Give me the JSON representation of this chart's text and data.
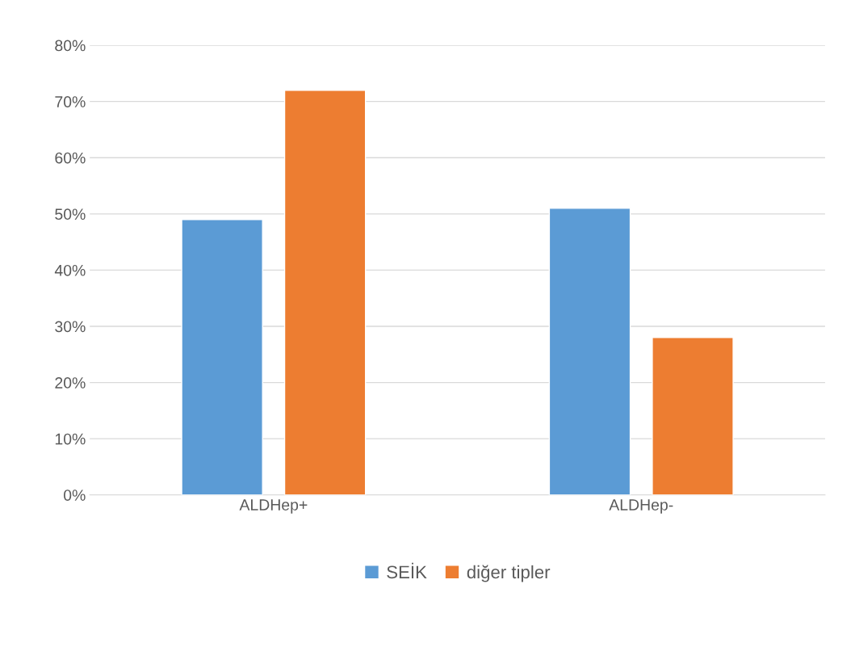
{
  "chart_data": {
    "type": "bar",
    "categories": [
      "ALDHep+",
      "ALDHep-"
    ],
    "series": [
      {
        "name": "SEİK",
        "color": "#5b9bd5",
        "values": [
          49,
          51
        ]
      },
      {
        "name": "diğer tipler",
        "color": "#ed7d31",
        "values": [
          72,
          28
        ]
      }
    ],
    "ylim": [
      0,
      80
    ],
    "yticks": [
      {
        "value": 0,
        "label": "0%"
      },
      {
        "value": 10,
        "label": "10%"
      },
      {
        "value": 20,
        "label": "20%"
      },
      {
        "value": 30,
        "label": "30%"
      },
      {
        "value": 40,
        "label": "40%"
      },
      {
        "value": 50,
        "label": "50%"
      },
      {
        "value": 60,
        "label": "60%"
      },
      {
        "value": 70,
        "label": "70%"
      },
      {
        "value": 80,
        "label": "80%"
      }
    ],
    "grid": "y",
    "legend": "bottom"
  }
}
